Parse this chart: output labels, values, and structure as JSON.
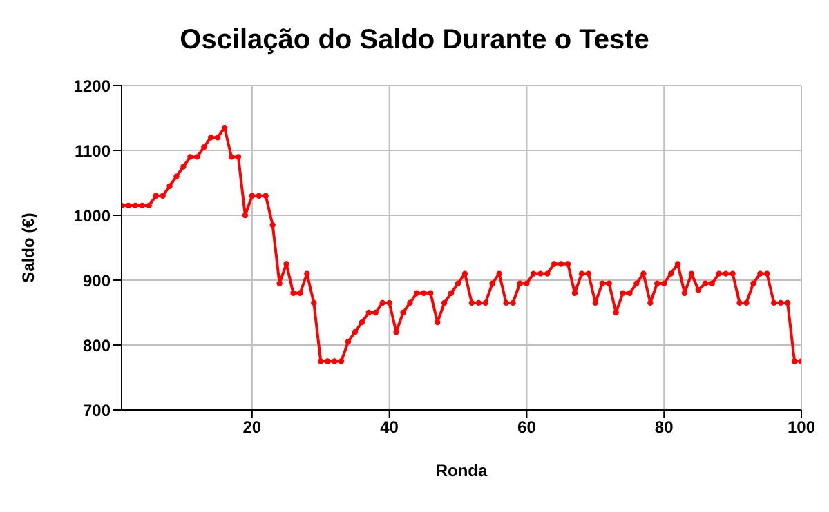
{
  "chart_data": {
    "type": "line",
    "title": "Oscilação do Saldo Durante o Teste",
    "xlabel": "Ronda",
    "ylabel": "Saldo (€)",
    "x": [
      1,
      2,
      3,
      4,
      5,
      6,
      7,
      8,
      9,
      10,
      11,
      12,
      13,
      14,
      15,
      16,
      17,
      18,
      19,
      20,
      21,
      22,
      23,
      24,
      25,
      26,
      27,
      28,
      29,
      30,
      31,
      32,
      33,
      34,
      35,
      36,
      37,
      38,
      39,
      40,
      41,
      42,
      43,
      44,
      45,
      46,
      47,
      48,
      49,
      50,
      51,
      52,
      53,
      54,
      55,
      56,
      57,
      58,
      59,
      60,
      61,
      62,
      63,
      64,
      65,
      66,
      67,
      68,
      69,
      70,
      71,
      72,
      73,
      74,
      75,
      76,
      77,
      78,
      79,
      80,
      81,
      82,
      83,
      84,
      85,
      86,
      87,
      88,
      89,
      90,
      91,
      92,
      93,
      94,
      95,
      96,
      97,
      98,
      99,
      100
    ],
    "series": [
      {
        "color": "#ff0000",
        "values": [
          1015,
          1015,
          1015,
          1015,
          1015,
          1030,
          1030,
          1045,
          1060,
          1075,
          1090,
          1090,
          1105,
          1120,
          1120,
          1135,
          1090,
          1090,
          1000,
          1030,
          1030,
          1030,
          985,
          895,
          925,
          880,
          880,
          910,
          865,
          775,
          775,
          775,
          775,
          805,
          820,
          835,
          850,
          850,
          865,
          865,
          820,
          850,
          865,
          880,
          880,
          880,
          835,
          865,
          880,
          895,
          910,
          865,
          865,
          865,
          895,
          910,
          865,
          865,
          895,
          895,
          910,
          910,
          910,
          925,
          925,
          925,
          880,
          910,
          910,
          865,
          895,
          895,
          850,
          880,
          880,
          895,
          910,
          865,
          895,
          895,
          910,
          925,
          880,
          910,
          885,
          895,
          895,
          910,
          910,
          910,
          865,
          865,
          895,
          910,
          910,
          865,
          865,
          865,
          775,
          775
        ]
      }
    ],
    "xlim": [
      1,
      100
    ],
    "xticks": [
      20,
      40,
      60,
      80,
      100
    ],
    "ylim": [
      700,
      1200
    ],
    "yticks": [
      700,
      800,
      900,
      1000,
      1100,
      1200
    ],
    "grid": true,
    "marker": "circle",
    "line_style": "solid",
    "legend": false
  }
}
